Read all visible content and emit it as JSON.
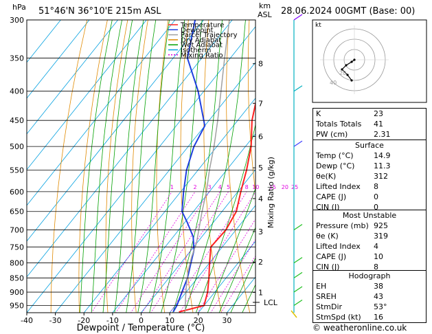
{
  "header": {
    "pressure_unit": "hPa",
    "location": "51°46'N  36°10'E  215m  ASL",
    "km_label": "km",
    "asl_label": "ASL",
    "datetime": "28.06.2024  00GMT  (Base: 00)"
  },
  "legend": [
    {
      "label": "Temperature",
      "color": "#ff2020",
      "dash": ""
    },
    {
      "label": "Dewpoint",
      "color": "#1f3fe0",
      "dash": ""
    },
    {
      "label": "Parcel Trajectory",
      "color": "#a0a0a0",
      "dash": ""
    },
    {
      "label": "Dry Adiabat",
      "color": "#e08a00",
      "dash": ""
    },
    {
      "label": "Wet Adiabat",
      "color": "#00a000",
      "dash": ""
    },
    {
      "label": "Isotherm",
      "color": "#00a0e0",
      "dash": ""
    },
    {
      "label": "Mixing Ratio",
      "color": "#e000e0",
      "dash": "2,2"
    }
  ],
  "chart_data": {
    "type": "line",
    "title": "51°46'N  36°10'E  215m  ASL",
    "xlabel": "Dewpoint / Temperature (°C)",
    "ylabel": "hPa",
    "y_scale": "log",
    "ylim": [
      978,
      300
    ],
    "xlim": [
      -40,
      40
    ],
    "x_ticks": [
      -40,
      -30,
      -20,
      -10,
      0,
      10,
      20,
      30
    ],
    "pressure_levels": [
      300,
      350,
      400,
      450,
      500,
      550,
      600,
      650,
      700,
      750,
      800,
      850,
      900,
      950
    ],
    "series": [
      {
        "name": "Temperature",
        "color": "#ff2020",
        "points": [
          [
            13,
            975
          ],
          [
            15,
            968
          ],
          [
            20,
            950
          ],
          [
            17.5,
            900
          ],
          [
            14,
            850
          ],
          [
            10,
            800
          ],
          [
            6,
            750
          ],
          [
            6.5,
            700
          ],
          [
            5,
            650
          ],
          [
            1,
            600
          ],
          [
            -3,
            550
          ],
          [
            -8,
            500
          ],
          [
            -15,
            450
          ],
          [
            -21,
            400
          ],
          [
            -29,
            350
          ],
          [
            -36,
            300
          ]
        ]
      },
      {
        "name": "Dewpoint",
        "color": "#1f3fe0",
        "points": [
          [
            11,
            975
          ],
          [
            10.5,
            950
          ],
          [
            8.5,
            900
          ],
          [
            6.5,
            850
          ],
          [
            3.5,
            800
          ],
          [
            1,
            760
          ],
          [
            -3,
            720
          ],
          [
            -9,
            680
          ],
          [
            -14,
            650
          ],
          [
            -19,
            600
          ],
          [
            -24,
            550
          ],
          [
            -28,
            500
          ],
          [
            -30,
            460
          ],
          [
            -42,
            400
          ],
          [
            -55,
            350
          ],
          [
            -63,
            300
          ]
        ]
      },
      {
        "name": "Parcel Trajectory",
        "color": "#a0a0a0",
        "points": [
          [
            14.9,
            970
          ],
          [
            12,
            930
          ],
          [
            8.5,
            880
          ],
          [
            5,
            830
          ],
          [
            2,
            780
          ],
          [
            0,
            740
          ],
          [
            -3,
            700
          ],
          [
            -7,
            650
          ],
          [
            -11,
            600
          ],
          [
            -16,
            550
          ],
          [
            -21,
            500
          ],
          [
            -27,
            450
          ],
          [
            -34,
            400
          ],
          [
            -42,
            350
          ],
          [
            -51,
            300
          ]
        ]
      }
    ],
    "mixing_ratio_labels": [
      "1",
      "2",
      "3",
      "4",
      "5",
      "8",
      "10",
      "15",
      "20",
      "25"
    ],
    "mixing_ratio_axis_label": "Mixing Ratio (g/kg)",
    "height_km_ticks": [
      {
        "km": "8",
        "p": 358
      },
      {
        "km": "7",
        "p": 420
      },
      {
        "km": "6",
        "p": 480
      },
      {
        "km": "5",
        "p": 545
      },
      {
        "km": "4",
        "p": 617
      },
      {
        "km": "3",
        "p": 705
      },
      {
        "km": "2",
        "p": 797
      },
      {
        "km": "1",
        "p": 901
      }
    ],
    "lcl": {
      "label": "LCL",
      "p": 938
    }
  },
  "hodograph": {
    "label": "kt",
    "ring_labels": [
      "20",
      "40"
    ],
    "points": [
      [
        0,
        0
      ],
      [
        -4,
        -3
      ],
      [
        -12,
        -8
      ],
      [
        -18,
        -14
      ],
      [
        -10,
        -22
      ],
      [
        -4,
        -30
      ]
    ]
  },
  "indices": [
    {
      "label": "K",
      "value": "23"
    },
    {
      "label": "Totals Totals",
      "value": "41"
    },
    {
      "label": "PW (cm)",
      "value": "2.31"
    }
  ],
  "surface": {
    "title": "Surface",
    "rows": [
      {
        "label": "Temp (°C)",
        "value": "14.9"
      },
      {
        "label": "Dewp (°C)",
        "value": "11.3"
      },
      {
        "label": "θe(K)",
        "value": "312"
      },
      {
        "label": "Lifted Index",
        "value": "8"
      },
      {
        "label": "CAPE (J)",
        "value": "0"
      },
      {
        "label": "CIN (J)",
        "value": "0"
      }
    ]
  },
  "most_unstable": {
    "title": "Most Unstable",
    "rows": [
      {
        "label": "Pressure (mb)",
        "value": "925"
      },
      {
        "label": "θe (K)",
        "value": "319"
      },
      {
        "label": "Lifted Index",
        "value": "4"
      },
      {
        "label": "CAPE (J)",
        "value": "10"
      },
      {
        "label": "CIN (J)",
        "value": "8"
      }
    ]
  },
  "hodograph_params": {
    "title": "Hodograph",
    "rows": [
      {
        "label": "EH",
        "value": "38"
      },
      {
        "label": "SREH",
        "value": "43"
      },
      {
        "label": "StmDir",
        "value": "53°"
      },
      {
        "label": "StmSpd (kt)",
        "value": "16"
      }
    ]
  },
  "footer": {
    "credit": "© weatheronline.co.uk"
  },
  "colors": {
    "temperature": "#ff2020",
    "dewpoint": "#1f3fe0",
    "parcel": "#a0a0a0",
    "dry_adiabat": "#e08a00",
    "wet_adiabat": "#00a000",
    "isotherm": "#00a0e0",
    "mixing_ratio": "#e000e0",
    "wind": "#00b0c0"
  }
}
